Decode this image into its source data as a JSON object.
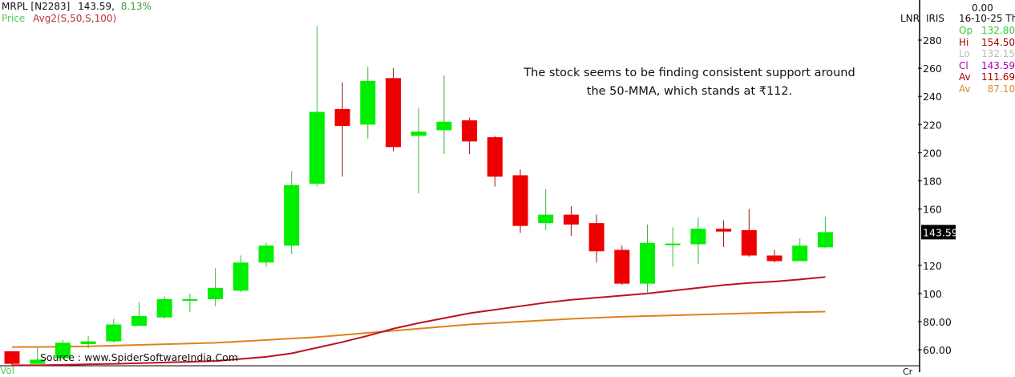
{
  "header": {
    "symbol": "MRPL [N2283]",
    "price": "143.59,",
    "change": "8.13%",
    "price_label": "Price",
    "indicator_label": "Avg2(S,50,S,100)"
  },
  "right_panel": {
    "lnr": "LNR",
    "iris": "IRIS",
    "top_value": "0.00",
    "date": "16-10-25 Th",
    "rows": [
      {
        "label": "Op",
        "value": "132.80",
        "color": "#33cc33"
      },
      {
        "label": "Hi",
        "value": "154.50",
        "color": "#aa0000"
      },
      {
        "label": "Lo",
        "value": "132.15",
        "color": "#bbbbbb"
      },
      {
        "label": "Cl",
        "value": "143.59",
        "color": "#aa00aa"
      },
      {
        "label": "Av",
        "value": "111.69",
        "color": "#aa0000"
      },
      {
        "label": "Av",
        "value": "87.10",
        "color": "#dd8833"
      }
    ]
  },
  "annotation": {
    "line1": "The stock seems to be finding consistent support around",
    "line2": "the 50-MMA, which stands at ₹112."
  },
  "source": "Source : www.SpiderSoftwareIndia.Com",
  "bottom": {
    "vol": "Vol",
    "cr": "Cr"
  },
  "chart_data": {
    "type": "candlestick",
    "ylim": [
      45,
      292
    ],
    "y_ticks": [
      "280",
      "260",
      "240",
      "220",
      "200",
      "180",
      "160",
      "120",
      "100",
      "80.00",
      "60.00"
    ],
    "y_tick_values": [
      280,
      260,
      240,
      220,
      200,
      180,
      160,
      120,
      100,
      80,
      60
    ],
    "last_price_label": "143.59",
    "last_price": 143.59,
    "colors": {
      "up": "#00ee00",
      "down": "#ee0000",
      "ma50": "#bb1122",
      "ma100": "#e08020"
    },
    "candles": [
      {
        "o": 59,
        "h": 59,
        "l": 49,
        "c": 50
      },
      {
        "o": 50,
        "h": 62,
        "l": 49,
        "c": 53
      },
      {
        "o": 54,
        "h": 67,
        "l": 53,
        "c": 65
      },
      {
        "o": 64,
        "h": 70,
        "l": 61,
        "c": 66
      },
      {
        "o": 66,
        "h": 82,
        "l": 65,
        "c": 78
      },
      {
        "o": 77,
        "h": 94,
        "l": 77,
        "c": 84
      },
      {
        "o": 83,
        "h": 98,
        "l": 82,
        "c": 96
      },
      {
        "o": 95,
        "h": 100,
        "l": 87,
        "c": 96
      },
      {
        "o": 96,
        "h": 118,
        "l": 91,
        "c": 104
      },
      {
        "o": 102,
        "h": 127,
        "l": 101,
        "c": 122
      },
      {
        "o": 122,
        "h": 136,
        "l": 119,
        "c": 134
      },
      {
        "o": 134,
        "h": 187,
        "l": 128,
        "c": 177
      },
      {
        "o": 178,
        "h": 290,
        "l": 176,
        "c": 229
      },
      {
        "o": 231,
        "h": 250,
        "l": 183,
        "c": 219
      },
      {
        "o": 220,
        "h": 261,
        "l": 210,
        "c": 251
      },
      {
        "o": 253,
        "h": 260,
        "l": 201,
        "c": 204
      },
      {
        "o": 212,
        "h": 232,
        "l": 171,
        "c": 215
      },
      {
        "o": 216,
        "h": 255,
        "l": 199,
        "c": 222
      },
      {
        "o": 223,
        "h": 225,
        "l": 199,
        "c": 208
      },
      {
        "o": 211,
        "h": 212,
        "l": 176,
        "c": 183
      },
      {
        "o": 184,
        "h": 188,
        "l": 143,
        "c": 148
      },
      {
        "o": 150,
        "h": 174,
        "l": 145,
        "c": 156
      },
      {
        "o": 156,
        "h": 162,
        "l": 141,
        "c": 149
      },
      {
        "o": 150,
        "h": 156,
        "l": 122,
        "c": 130
      },
      {
        "o": 131,
        "h": 134,
        "l": 106,
        "c": 107
      },
      {
        "o": 107,
        "h": 149,
        "l": 100,
        "c": 136
      },
      {
        "o": 135,
        "h": 147,
        "l": 119,
        "c": 135.5
      },
      {
        "o": 135,
        "h": 154,
        "l": 121,
        "c": 146
      },
      {
        "o": 146,
        "h": 152,
        "l": 133,
        "c": 144
      },
      {
        "o": 145,
        "h": 160,
        "l": 126,
        "c": 127
      },
      {
        "o": 127,
        "h": 131,
        "l": 122,
        "c": 123
      },
      {
        "o": 123,
        "h": 139,
        "l": 123,
        "c": 134
      },
      {
        "o": 132.8,
        "h": 154.5,
        "l": 132.15,
        "c": 143.59
      }
    ],
    "ma50": [
      49,
      49,
      49.3,
      49.7,
      50,
      50.5,
      51,
      51.5,
      52,
      53.5,
      55,
      57.5,
      61.5,
      65.5,
      70,
      75,
      79,
      82.5,
      86,
      88.5,
      91,
      93.5,
      95.5,
      97,
      98.5,
      100,
      102,
      104,
      106,
      107.5,
      108.5,
      110,
      111.69
    ],
    "ma100": [
      62,
      62,
      62.2,
      62.5,
      63,
      63.5,
      64,
      64.5,
      65,
      66,
      67,
      68,
      69,
      70.5,
      72,
      73.5,
      75,
      76.5,
      78,
      79,
      80,
      81,
      82,
      82.8,
      83.5,
      84,
      84.5,
      85,
      85.5,
      86,
      86.4,
      86.8,
      87.1
    ]
  }
}
